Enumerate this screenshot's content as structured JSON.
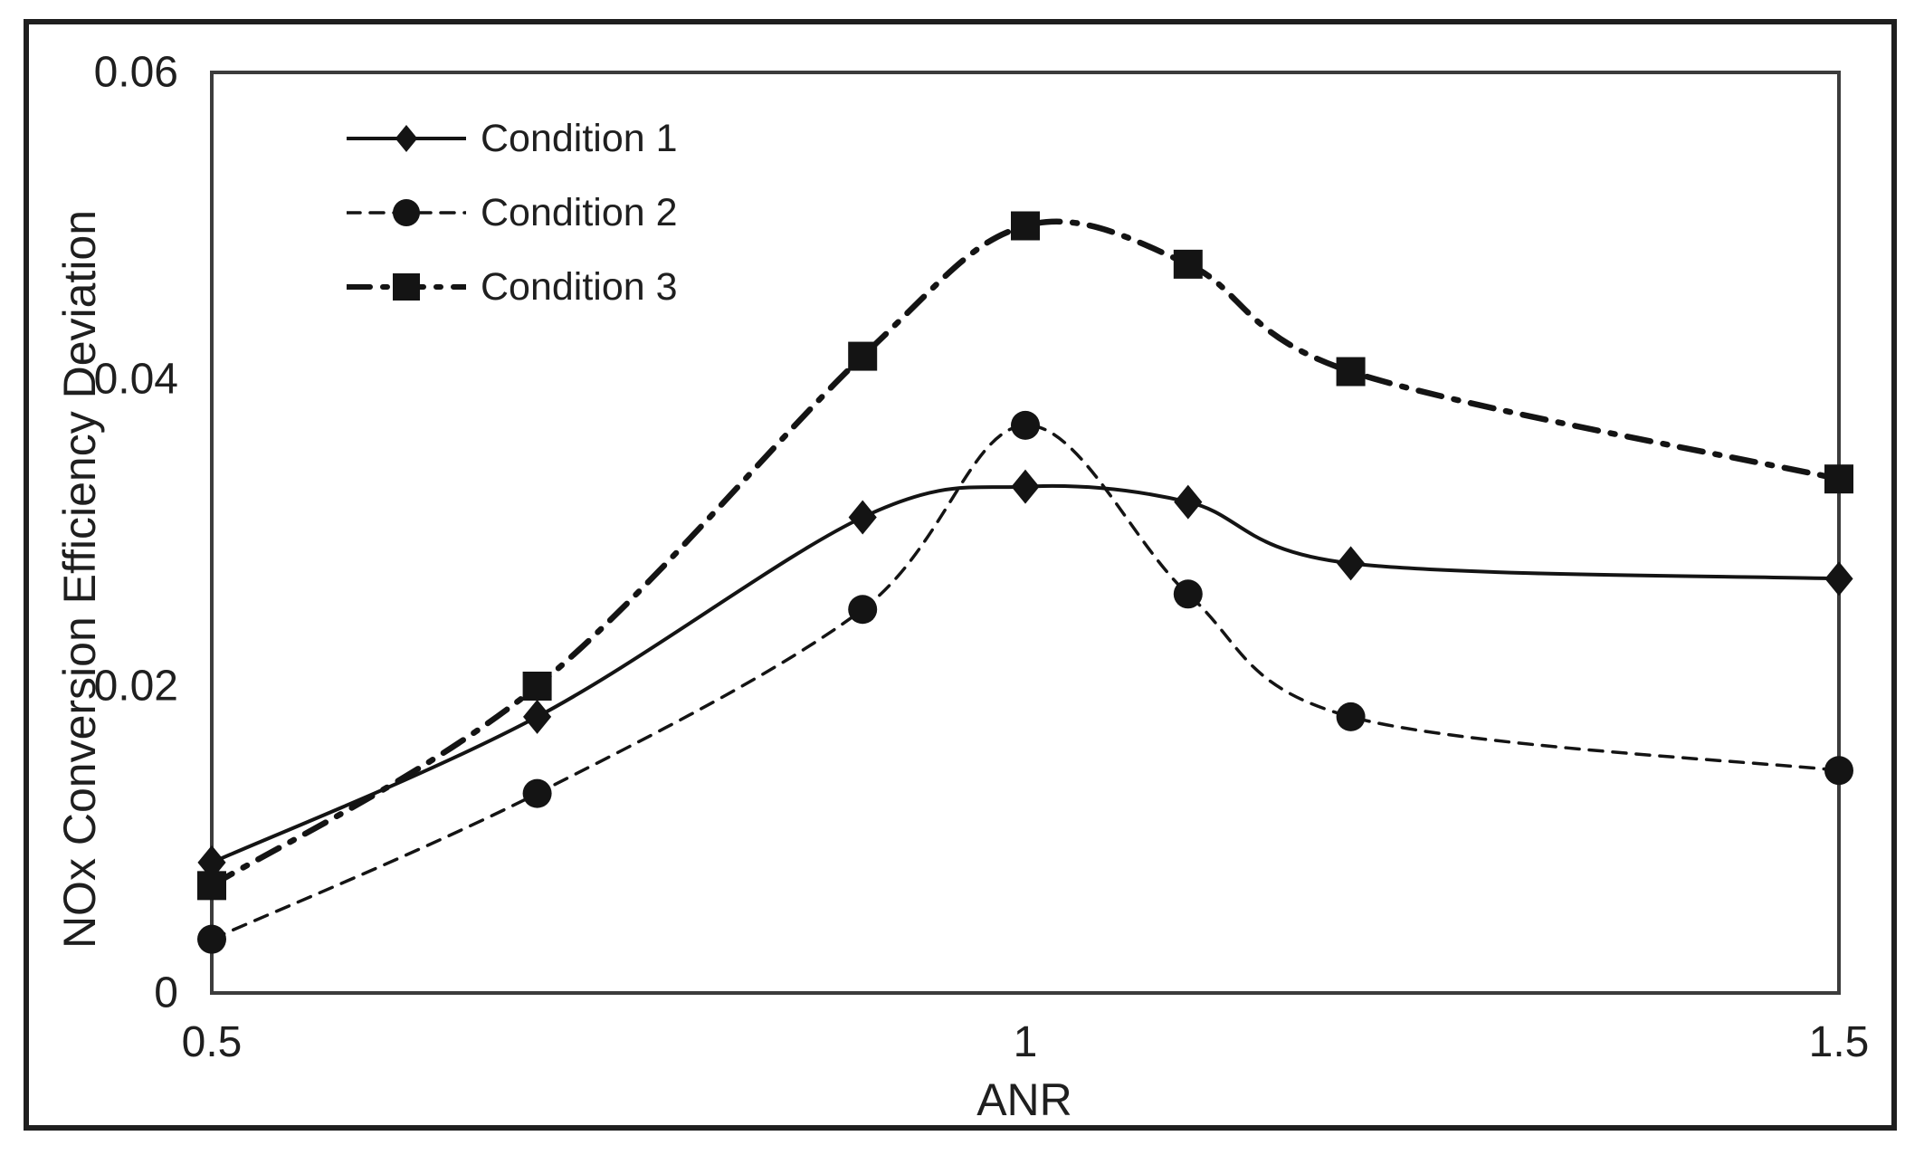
{
  "chart_data": {
    "type": "line",
    "title": "",
    "xlabel": "ANR",
    "ylabel": "NOx Conversion Efficiency Deviation",
    "xlim": [
      0.5,
      1.5
    ],
    "ylim": [
      0,
      0.06
    ],
    "grid": false,
    "legend_position": "inside-top-left",
    "background_color": "#ffffff",
    "frame_color": "#1f1f1f",
    "plot_border_color": "#3c3c3c",
    "text_color": "#1f1f1f",
    "series_color": "#141414",
    "x_tick_labels": [
      "0.5",
      "1",
      "1.5"
    ],
    "x_tick_values": [
      0.5,
      1,
      1.5
    ],
    "y_tick_labels": [
      "0",
      "0.02",
      "0.04",
      "0.06"
    ],
    "y_tick_values": [
      0,
      0.02,
      0.04,
      0.06
    ],
    "x": [
      0.5,
      0.7,
      0.9,
      1,
      1.1,
      1.2,
      1.5
    ],
    "series": [
      {
        "name": "Condition 1",
        "marker": "diamond",
        "line_style": "solid",
        "stroke_width": 4,
        "marker_size": 19,
        "values": [
          0.0085,
          0.018,
          0.031,
          0.033,
          0.032,
          0.028,
          0.027
        ]
      },
      {
        "name": "Condition 2",
        "marker": "circle",
        "line_style": "dashed",
        "stroke_width": 3.5,
        "marker_size": 16,
        "values": [
          0.0035,
          0.013,
          0.025,
          0.037,
          0.026,
          0.018,
          0.0145
        ]
      },
      {
        "name": "Condition 3",
        "marker": "square",
        "line_style": "dash-dot",
        "stroke_width": 6.5,
        "marker_size": 16,
        "values": [
          0.007,
          0.02,
          0.0415,
          0.05,
          0.0475,
          0.0405,
          0.0335
        ]
      }
    ]
  }
}
